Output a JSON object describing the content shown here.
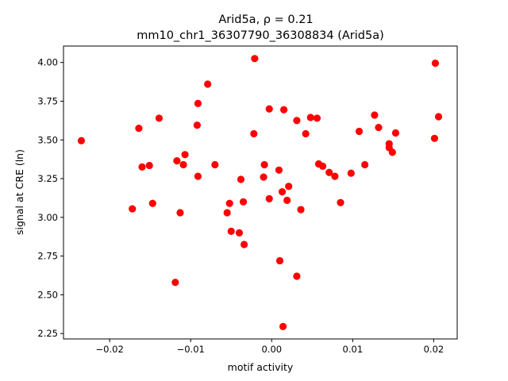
{
  "chart_data": {
    "type": "scatter",
    "title_line1": "Arid5a, ρ = 0.21",
    "title_line2": "mm10_chr1_36307790_36308834 (Arid5a)",
    "xlabel": "motif activity",
    "ylabel": "signal at CRE (ln)",
    "xlim": [
      -0.0257,
      0.0229
    ],
    "ylim": [
      2.215,
      4.106
    ],
    "xticks": [
      -0.02,
      -0.01,
      0.0,
      0.01,
      0.02
    ],
    "xtick_labels": [
      "−0.02",
      "−0.01",
      "0.00",
      "0.01",
      "0.02"
    ],
    "yticks": [
      2.25,
      2.5,
      2.75,
      3.0,
      3.25,
      3.5,
      3.75,
      4.0
    ],
    "ytick_labels": [
      "2.25",
      "2.50",
      "2.75",
      "3.00",
      "3.25",
      "3.50",
      "3.75",
      "4.00"
    ],
    "marker_color": "#ff0000",
    "grid": false,
    "points": [
      {
        "x": -0.0235,
        "y": 3.495
      },
      {
        "x": -0.0172,
        "y": 3.055
      },
      {
        "x": -0.0164,
        "y": 3.575
      },
      {
        "x": -0.016,
        "y": 3.325
      },
      {
        "x": -0.0151,
        "y": 3.335
      },
      {
        "x": -0.0147,
        "y": 3.09
      },
      {
        "x": -0.0139,
        "y": 3.64
      },
      {
        "x": -0.0117,
        "y": 3.365
      },
      {
        "x": -0.0119,
        "y": 2.58
      },
      {
        "x": -0.0113,
        "y": 3.03
      },
      {
        "x": -0.0107,
        "y": 3.405
      },
      {
        "x": -0.0109,
        "y": 3.34
      },
      {
        "x": -0.0091,
        "y": 3.735
      },
      {
        "x": -0.0092,
        "y": 3.595
      },
      {
        "x": -0.0091,
        "y": 3.265
      },
      {
        "x": -0.0079,
        "y": 3.86
      },
      {
        "x": -0.007,
        "y": 3.34
      },
      {
        "x": -0.0055,
        "y": 3.03
      },
      {
        "x": -0.0052,
        "y": 3.09
      },
      {
        "x": -0.005,
        "y": 2.91
      },
      {
        "x": -0.004,
        "y": 2.9
      },
      {
        "x": -0.0038,
        "y": 3.245
      },
      {
        "x": -0.0035,
        "y": 3.1
      },
      {
        "x": -0.0034,
        "y": 2.825
      },
      {
        "x": -0.0021,
        "y": 4.025
      },
      {
        "x": -0.0022,
        "y": 3.54
      },
      {
        "x": -0.0009,
        "y": 3.34
      },
      {
        "x": -0.001,
        "y": 3.26
      },
      {
        "x": -0.0003,
        "y": 3.7
      },
      {
        "x": -0.0003,
        "y": 3.12
      },
      {
        "x": 0.0009,
        "y": 3.305
      },
      {
        "x": 0.001,
        "y": 2.72
      },
      {
        "x": 0.0013,
        "y": 3.165
      },
      {
        "x": 0.0015,
        "y": 3.695
      },
      {
        "x": 0.0014,
        "y": 2.295
      },
      {
        "x": 0.0019,
        "y": 3.11
      },
      {
        "x": 0.0021,
        "y": 3.2
      },
      {
        "x": 0.0031,
        "y": 3.625
      },
      {
        "x": 0.0031,
        "y": 2.62
      },
      {
        "x": 0.0036,
        "y": 3.05
      },
      {
        "x": 0.0042,
        "y": 3.54
      },
      {
        "x": 0.0048,
        "y": 3.645
      },
      {
        "x": 0.0056,
        "y": 3.64
      },
      {
        "x": 0.0058,
        "y": 3.345
      },
      {
        "x": 0.0063,
        "y": 3.33
      },
      {
        "x": 0.0071,
        "y": 3.29
      },
      {
        "x": 0.0078,
        "y": 3.265
      },
      {
        "x": 0.0085,
        "y": 3.095
      },
      {
        "x": 0.0098,
        "y": 3.285
      },
      {
        "x": 0.0108,
        "y": 3.555
      },
      {
        "x": 0.0115,
        "y": 3.34
      },
      {
        "x": 0.0127,
        "y": 3.66
      },
      {
        "x": 0.0132,
        "y": 3.58
      },
      {
        "x": 0.0145,
        "y": 3.475
      },
      {
        "x": 0.0145,
        "y": 3.45
      },
      {
        "x": 0.0149,
        "y": 3.42
      },
      {
        "x": 0.0153,
        "y": 3.545
      },
      {
        "x": 0.0202,
        "y": 3.995
      },
      {
        "x": 0.0201,
        "y": 3.51
      },
      {
        "x": 0.0206,
        "y": 3.65
      }
    ]
  }
}
